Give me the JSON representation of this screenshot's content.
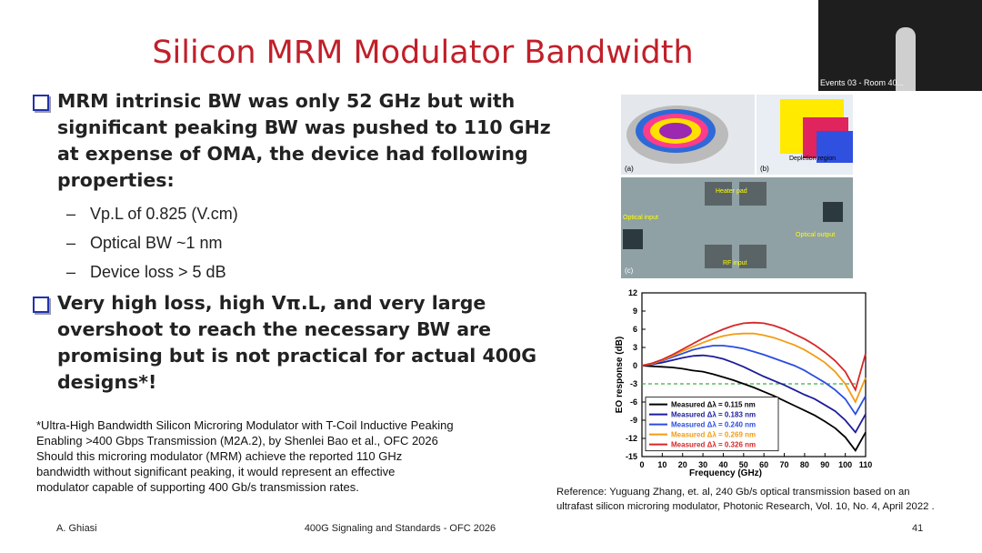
{
  "title": "Silicon MRM Modulator Bandwidth",
  "bullets": [
    {
      "lines": [
        "MRM intrinsic BW was only 52 GHz but with",
        "significant peaking BW was pushed to 110 GHz",
        "at expense of OMA, the device had following",
        "properties:"
      ],
      "sub": [
        "Vp.L of 0.825 (V.cm)",
        "Optical BW ~1 nm",
        "Device loss > 5 dB"
      ]
    },
    {
      "lines": [
        "Very high loss, high Vπ.L, and very large",
        "overshoot to reach the necessary BW are",
        "promising but is not practical for actual 400G",
        "designs*!"
      ]
    }
  ],
  "footnote": [
    "*Ultra-High Bandwidth Silicon Microring Modulator with T-Coil Inductive Peaking",
    "Enabling >400 Gbps Transmission (M2A.2), by Shenlei Bao et al., OFC 2026",
    "Should this microring modulator (MRM) achieve the reported 110 GHz",
    "bandwidth without significant peaking, it would represent an effective",
    "modulator capable of supporting 400 Gb/s transmission rates."
  ],
  "reference": [
    "Reference: Yuguang Zhang, et. al, 240 Gb/s optical transmission based on an",
    "ultrafast silicon microring modulator, Photonic Research, Vol. 10, No. 4, April 2022 ."
  ],
  "footer": {
    "left": "A. Ghiasi",
    "center": "400G Signaling and Standards - OFC 2026",
    "right": "41"
  },
  "webcam_label": "Events 03 - Room 40...",
  "figure_labels": {
    "a": "(a)",
    "b": "(b)",
    "c": "(c)",
    "depletion": "Depletion region",
    "heater": "Heater pad",
    "optical_input": "Optical input",
    "optical_output": "Optical output",
    "rf_input": "RF input"
  },
  "chart_data": {
    "type": "line",
    "xlabel": "Frequency (GHz)",
    "ylabel": "EO response (dB)",
    "x": [
      0,
      5,
      10,
      15,
      20,
      25,
      30,
      35,
      40,
      45,
      50,
      55,
      60,
      65,
      70,
      75,
      80,
      85,
      90,
      95,
      100,
      105,
      110
    ],
    "xlim": [
      0,
      110
    ],
    "xticks": [
      0,
      10,
      20,
      30,
      40,
      50,
      60,
      70,
      80,
      90,
      100,
      110
    ],
    "ylim": [
      -15,
      12
    ],
    "yticks": [
      -15,
      -12,
      -9,
      -6,
      -3,
      0,
      3,
      6,
      9,
      12
    ],
    "reference_line": -3,
    "reference_color": "#3cb043",
    "series": [
      {
        "name": "Measured Δλ = 0.115 nm",
        "color": "#000000",
        "values": [
          0,
          -0.1,
          -0.2,
          -0.3,
          -0.5,
          -0.8,
          -1.0,
          -1.4,
          -1.9,
          -2.4,
          -3.0,
          -3.6,
          -4.3,
          -5.0,
          -5.8,
          -6.6,
          -7.4,
          -8.2,
          -9.2,
          -10.3,
          -11.8,
          -14,
          -11
        ]
      },
      {
        "name": "Measured Δλ = 0.183 nm",
        "color": "#1c1c9c",
        "values": [
          0,
          0.2,
          0.5,
          0.9,
          1.3,
          1.6,
          1.7,
          1.5,
          1.1,
          0.5,
          -0.2,
          -1.0,
          -1.8,
          -2.5,
          -3.2,
          -4.0,
          -4.8,
          -5.5,
          -6.5,
          -7.5,
          -9,
          -11,
          -8
        ]
      },
      {
        "name": "Measured Δλ = 0.240 nm",
        "color": "#2a4de0",
        "values": [
          0,
          0.3,
          0.8,
          1.4,
          2.0,
          2.6,
          3.0,
          3.3,
          3.3,
          3.1,
          2.8,
          2.3,
          1.8,
          1.2,
          0.6,
          0,
          -0.8,
          -1.8,
          -2.8,
          -4,
          -5.5,
          -8,
          -5
        ]
      },
      {
        "name": "Measured Δλ = 0.269 nm",
        "color": "#f39c12",
        "values": [
          0,
          0.3,
          0.9,
          1.6,
          2.4,
          3.1,
          3.8,
          4.4,
          4.9,
          5.2,
          5.3,
          5.3,
          5.0,
          4.6,
          4.0,
          3.4,
          2.6,
          1.6,
          0.5,
          -1,
          -3,
          -6,
          -2
        ]
      },
      {
        "name": "Measured Δλ = 0.326 nm",
        "color": "#d62728",
        "values": [
          0,
          0.4,
          1.0,
          1.8,
          2.7,
          3.6,
          4.5,
          5.3,
          6.0,
          6.6,
          7.0,
          7.1,
          7.0,
          6.6,
          6.0,
          5.2,
          4.4,
          3.4,
          2.2,
          0.8,
          -1,
          -4,
          2
        ]
      }
    ]
  }
}
